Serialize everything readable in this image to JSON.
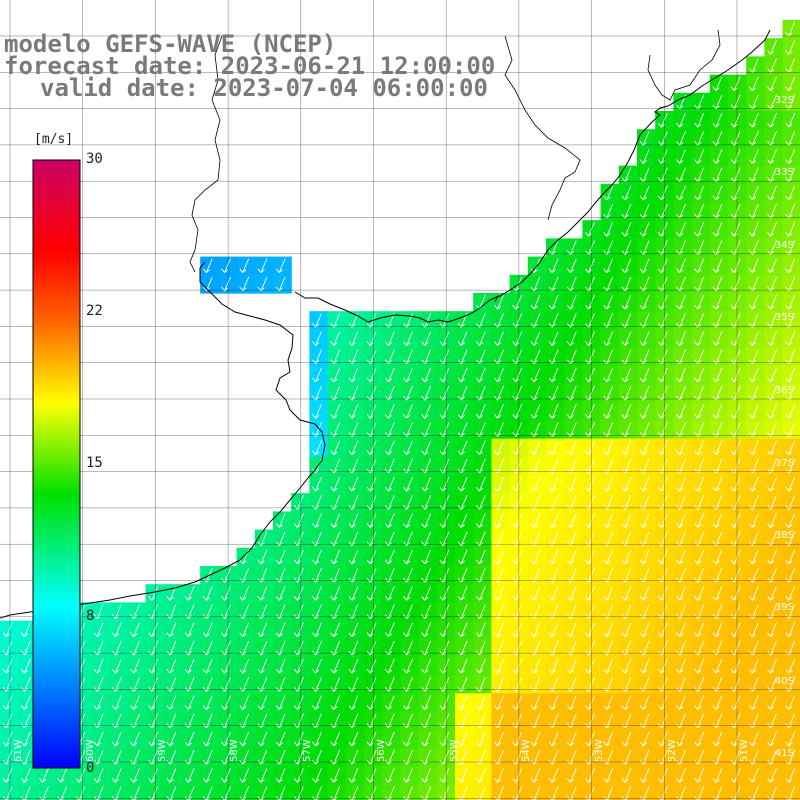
{
  "title": {
    "line1": "modelo GEFS-WAVE (NCEP)",
    "line2": "forecast date: 2023-06-21 12:00:00",
    "line3": "valid date: 2023-07-04 06:00:00"
  },
  "colorbar": {
    "unit": "[m/s]",
    "ticks": [
      "30",
      "22",
      "15",
      "8",
      "0"
    ],
    "colors": [
      "#0000ff",
      "#00ffff",
      "#00ff00",
      "#ffff00",
      "#ff6600",
      "#ff0000",
      "#cc0066"
    ]
  },
  "lat_labels": [
    "32S",
    "33S",
    "34S",
    "35S",
    "36S",
    "37S",
    "38S",
    "39S",
    "40S",
    "41S"
  ],
  "lon_labels": [
    "61W",
    "60W",
    "59W",
    "58W",
    "57W",
    "56W",
    "55W",
    "54W",
    "53W",
    "52W",
    "51W"
  ],
  "map_extent": {
    "lon_min": -61.5,
    "lon_max": -50.7,
    "lat_max": -31.2,
    "lat_min": -41.4
  },
  "wind_field": {
    "variable": "wind speed",
    "units": "m/s",
    "direction": "mostly from north-northwest (arrows pointing south-southwest)"
  },
  "colors": {
    "land": "#ffffff",
    "coastline": "#000000",
    "grid": "#000000",
    "arrow": "#ffffff"
  }
}
